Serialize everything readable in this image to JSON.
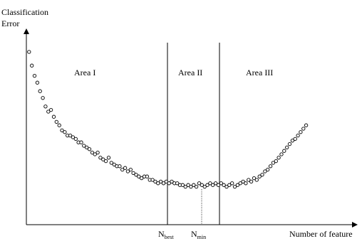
{
  "chart_data": {
    "type": "scatter",
    "ylabel_line1": "Classification",
    "ylabel_line2": "Error",
    "xlabel": "Number of feature",
    "areas": [
      "Area I",
      "Area II",
      "Area III"
    ],
    "markers": [
      {
        "main": "N",
        "sub": "best"
      },
      {
        "main": "N",
        "sub": "min"
      }
    ],
    "boundaries": [
      56,
      76
    ],
    "xlim": [
      0,
      106
    ],
    "ylim": [
      0,
      100
    ],
    "series": [
      {
        "points": [
          [
            1,
            95
          ],
          [
            2,
            87
          ],
          [
            3,
            81
          ],
          [
            4,
            77
          ],
          [
            5,
            72
          ],
          [
            6,
            68
          ],
          [
            7,
            63
          ],
          [
            8,
            60
          ],
          [
            9,
            61
          ],
          [
            10,
            57
          ],
          [
            11,
            54
          ],
          [
            12,
            52
          ],
          [
            13,
            49
          ],
          [
            14,
            48
          ],
          [
            15,
            46
          ],
          [
            16,
            46
          ],
          [
            17,
            45
          ],
          [
            18,
            44
          ],
          [
            19,
            42
          ],
          [
            20,
            42
          ],
          [
            21,
            40
          ],
          [
            22,
            39
          ],
          [
            23,
            38
          ],
          [
            24,
            36
          ],
          [
            25,
            35
          ],
          [
            26,
            36
          ],
          [
            27,
            33
          ],
          [
            28,
            32
          ],
          [
            29,
            31
          ],
          [
            30,
            33
          ],
          [
            31,
            30
          ],
          [
            32,
            29
          ],
          [
            33,
            28
          ],
          [
            34,
            28
          ],
          [
            35,
            26
          ],
          [
            36,
            27
          ],
          [
            37,
            25
          ],
          [
            38,
            26
          ],
          [
            39,
            24
          ],
          [
            40,
            23
          ],
          [
            41,
            22
          ],
          [
            42,
            21
          ],
          [
            43,
            22
          ],
          [
            44,
            22
          ],
          [
            45,
            20
          ],
          [
            46,
            20
          ],
          [
            47,
            19
          ],
          [
            48,
            18
          ],
          [
            49,
            19
          ],
          [
            50,
            18
          ],
          [
            51,
            19
          ],
          [
            52,
            18
          ],
          [
            53,
            19
          ],
          [
            54,
            18
          ],
          [
            55,
            18
          ],
          [
            56,
            17
          ],
          [
            57,
            17
          ],
          [
            58,
            16
          ],
          [
            59,
            17
          ],
          [
            60,
            16
          ],
          [
            61,
            17
          ],
          [
            62,
            16
          ],
          [
            63,
            18
          ],
          [
            64,
            17
          ],
          [
            65,
            16
          ],
          [
            66,
            17
          ],
          [
            67,
            18
          ],
          [
            68,
            17
          ],
          [
            69,
            18
          ],
          [
            70,
            17
          ],
          [
            71,
            18
          ],
          [
            72,
            17
          ],
          [
            73,
            16
          ],
          [
            74,
            17
          ],
          [
            75,
            18
          ],
          [
            76,
            16
          ],
          [
            77,
            17
          ],
          [
            78,
            18
          ],
          [
            79,
            19
          ],
          [
            80,
            18
          ],
          [
            81,
            20
          ],
          [
            82,
            19
          ],
          [
            83,
            21
          ],
          [
            84,
            20
          ],
          [
            85,
            22
          ],
          [
            86,
            23
          ],
          [
            87,
            25
          ],
          [
            88,
            26
          ],
          [
            89,
            28
          ],
          [
            90,
            30
          ],
          [
            91,
            31
          ],
          [
            92,
            33
          ],
          [
            93,
            35
          ],
          [
            94,
            37
          ],
          [
            95,
            39
          ],
          [
            96,
            41
          ],
          [
            97,
            43
          ],
          [
            98,
            44
          ],
          [
            99,
            46
          ],
          [
            100,
            48
          ],
          [
            101,
            50
          ],
          [
            102,
            52
          ]
        ]
      }
    ],
    "grid": false,
    "legend": "none"
  }
}
